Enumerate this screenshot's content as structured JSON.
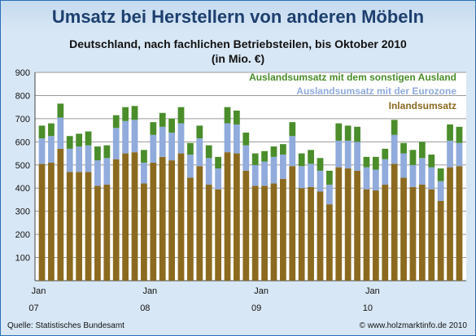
{
  "title": "Umsatz bei Herstellern von anderen Möbeln",
  "subtitle_line1": "Deutschland, nach fachlichen Betriebsteilen, bis Oktober 2010",
  "subtitle_line2": "(in Mio. €)",
  "footer": {
    "source": "Quelle:  Statistisches Bundesamt",
    "copyright": "© www.holzmarktinfo.de 2010"
  },
  "colors": {
    "inland": "#8b6a1f",
    "eurozone": "#90abdc",
    "sonstiges": "#4a8d2a",
    "grid": "#9a9a9a",
    "plot_bg": "#ffffff"
  },
  "chart_data": {
    "type": "bar",
    "stacked": true,
    "title": "Umsatz bei Herstellern von anderen Möbeln",
    "ylim": [
      0,
      900
    ],
    "yticks": [
      100,
      200,
      300,
      400,
      500,
      600,
      700,
      800,
      900
    ],
    "grid": true,
    "legend_position": "top-right",
    "x_ticks": [
      {
        "index": 0,
        "label": "Jan",
        "year": "07"
      },
      {
        "index": 12,
        "label": "Jan",
        "year": "08"
      },
      {
        "index": 24,
        "label": "Jan",
        "year": "09"
      },
      {
        "index": 36,
        "label": "Jan",
        "year": "10"
      }
    ],
    "categories": [
      "Jan 07",
      "Feb 07",
      "Mär 07",
      "Apr 07",
      "Mai 07",
      "Jun 07",
      "Jul 07",
      "Aug 07",
      "Sep 07",
      "Okt 07",
      "Nov 07",
      "Dez 07",
      "Jan 08",
      "Feb 08",
      "Mär 08",
      "Apr 08",
      "Mai 08",
      "Jun 08",
      "Jul 08",
      "Aug 08",
      "Sep 08",
      "Okt 08",
      "Nov 08",
      "Dez 08",
      "Jan 09",
      "Feb 09",
      "Mär 09",
      "Apr 09",
      "Mai 09",
      "Jun 09",
      "Jul 09",
      "Aug 09",
      "Sep 09",
      "Okt 09",
      "Nov 09",
      "Dez 09",
      "Jan 10",
      "Feb 10",
      "Mär 10",
      "Apr 10",
      "Mai 10",
      "Jun 10",
      "Jul 10",
      "Aug 10",
      "Sep 10",
      "Okt 10"
    ],
    "series": [
      {
        "name": "Inlandsumsatz",
        "values": [
          505,
          510,
          570,
          470,
          470,
          470,
          410,
          415,
          525,
          550,
          555,
          420,
          510,
          535,
          520,
          550,
          445,
          495,
          415,
          395,
          555,
          550,
          475,
          410,
          410,
          420,
          440,
          495,
          400,
          405,
          385,
          330,
          490,
          485,
          475,
          395,
          390,
          415,
          505,
          445,
          405,
          415,
          395,
          345,
          490,
          495
        ]
      },
      {
        "name": "Auslandsumsatz mit der Eurozone",
        "values": [
          110,
          115,
          135,
          100,
          110,
          115,
          110,
          115,
          135,
          140,
          140,
          90,
          120,
          130,
          120,
          130,
          100,
          120,
          115,
          90,
          125,
          125,
          110,
          90,
          105,
          115,
          105,
          130,
          95,
          100,
          90,
          85,
          115,
          120,
          125,
          95,
          90,
          110,
          125,
          105,
          95,
          115,
          95,
          85,
          115,
          100
        ]
      },
      {
        "name": "Auslandsumsatz mit dem sonstigen Ausland",
        "values": [
          55,
          55,
          60,
          55,
          55,
          60,
          60,
          55,
          55,
          60,
          60,
          55,
          55,
          60,
          60,
          70,
          50,
          55,
          55,
          50,
          70,
          60,
          55,
          50,
          45,
          45,
          45,
          60,
          55,
          60,
          55,
          60,
          75,
          65,
          65,
          45,
          55,
          45,
          65,
          45,
          65,
          70,
          55,
          55,
          70,
          70
        ]
      }
    ]
  }
}
